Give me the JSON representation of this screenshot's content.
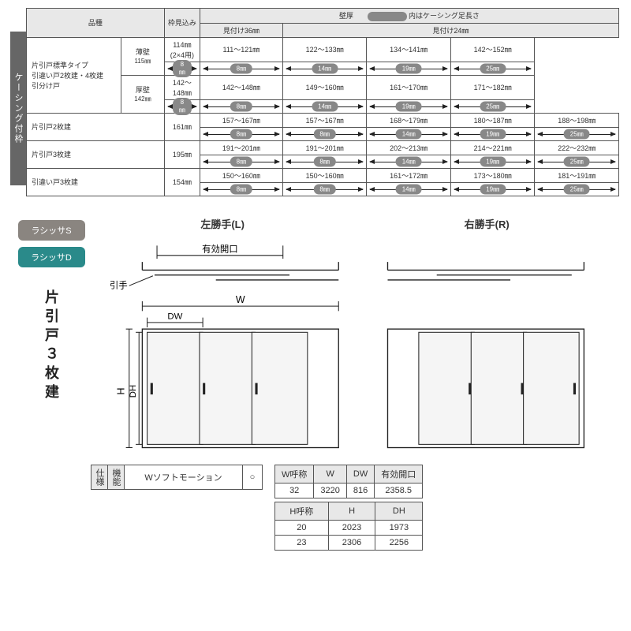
{
  "vtab": "ケーシング付枠",
  "top": {
    "headers": {
      "hinshu": "品種",
      "wakumi": "枠見込み",
      "kabe": "壁厚",
      "note_suffix": "内はケーシング足長さ",
      "m36": "見付け36㎜",
      "m24": "見付け24㎜"
    },
    "rows": [
      {
        "label": "片引戸標準タイプ\n引違い戸2枚建・4枚建\n引分け戸",
        "sub": [
          {
            "sublabel": "薄壁",
            "subval": "115㎜",
            "ranges": [
              "114㎜(2×4用)",
              "111～121㎜",
              "122～133㎜",
              "134～141㎜",
              "142～152㎜"
            ],
            "pills": [
              "8㎜",
              "8㎜",
              "14㎜",
              "19㎜",
              "25㎜"
            ]
          },
          {
            "sublabel": "厚壁",
            "subval": "142㎜",
            "ranges": [
              "142～148㎜",
              "142～148㎜",
              "149～160㎜",
              "161～170㎜",
              "171～182㎜"
            ],
            "pills": [
              "8㎜",
              "8㎜",
              "14㎜",
              "19㎜",
              "25㎜"
            ]
          }
        ]
      },
      {
        "label": "片引戸2枚建",
        "sub": [
          {
            "sublabel": "",
            "subval": "161㎜",
            "ranges": [
              "157～167㎜",
              "157～167㎜",
              "168～179㎜",
              "180～187㎜",
              "188～198㎜"
            ],
            "pills": [
              "8㎜",
              "8㎜",
              "14㎜",
              "19㎜",
              "25㎜"
            ]
          }
        ]
      },
      {
        "label": "片引戸3枚建",
        "sub": [
          {
            "sublabel": "",
            "subval": "195㎜",
            "ranges": [
              "191～201㎜",
              "191～201㎜",
              "202～213㎜",
              "214～221㎜",
              "222～232㎜"
            ],
            "pills": [
              "8㎜",
              "8㎜",
              "14㎜",
              "19㎜",
              "25㎜"
            ]
          }
        ]
      },
      {
        "label": "引違い戸3枚建",
        "sub": [
          {
            "sublabel": "",
            "subval": "154㎜",
            "ranges": [
              "150～160㎜",
              "150～160㎜",
              "161～172㎜",
              "173～180㎜",
              "181～191㎜"
            ],
            "pills": [
              "8㎜",
              "8㎜",
              "14㎜",
              "19㎜",
              "25㎜"
            ]
          }
        ]
      }
    ]
  },
  "brands": {
    "s": {
      "label": "ラシッサS",
      "color": "#8a8580"
    },
    "d": {
      "label": "ラシッサD",
      "color": "#2a8a8a"
    }
  },
  "door_title": "片引戸３枚建",
  "dia": {
    "left_title": "左勝手(L)",
    "right_title": "右勝手(R)",
    "yuko": "有効開口",
    "hite": "引手",
    "W": "W",
    "DW": "DW",
    "H": "H",
    "DH": "DH"
  },
  "spec": {
    "shiyo": "仕様",
    "kino": "機能",
    "name": "Wソフトモーション",
    "mark": "○"
  },
  "dimW": {
    "cols": [
      "W呼称",
      "W",
      "DW",
      "有効開口"
    ],
    "row": [
      "32",
      "3220",
      "816",
      "2358.5"
    ]
  },
  "dimH": {
    "cols": [
      "H呼称",
      "H",
      "DH"
    ],
    "rows": [
      [
        "20",
        "2023",
        "1973"
      ],
      [
        "23",
        "2306",
        "2256"
      ]
    ]
  }
}
